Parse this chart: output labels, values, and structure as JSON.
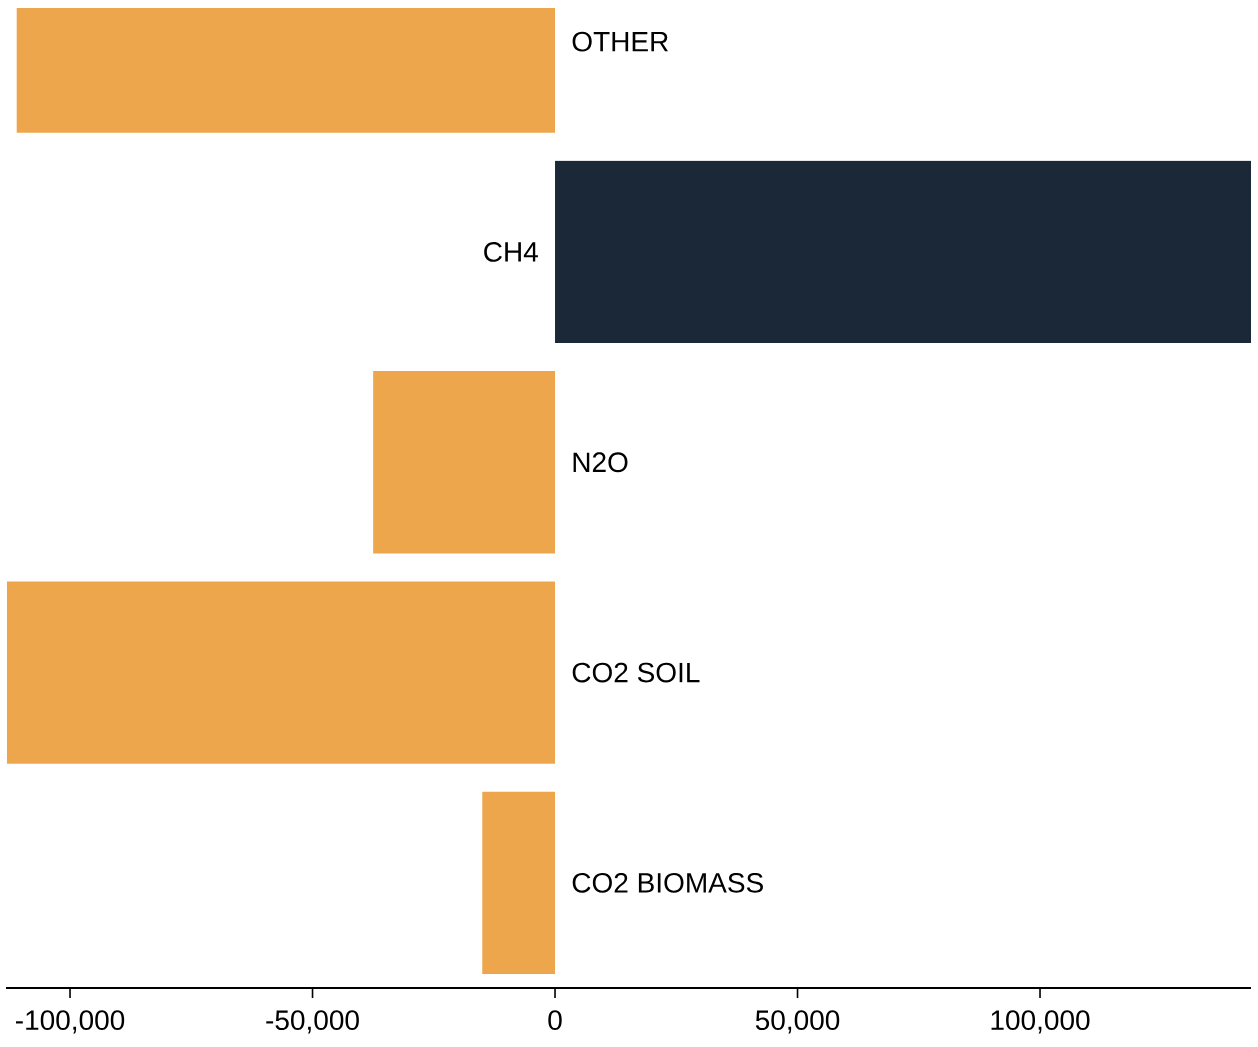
{
  "chart_data": {
    "type": "bar",
    "orientation": "horizontal",
    "categories": [
      "OTHER",
      "CH4",
      "N2O",
      "CO2 SOIL",
      "CO2 BIOMASS"
    ],
    "values": [
      -111000,
      143500,
      -37500,
      -113000,
      -15000
    ],
    "colors": [
      "#eea64c",
      "#1b2838",
      "#eea64c",
      "#eea64c",
      "#eea64c"
    ],
    "xlim": [
      -113200,
      143500
    ],
    "xticks": [
      {
        "value": -100000,
        "label": "-100,000"
      },
      {
        "value": -50000,
        "label": "-50,000"
      },
      0,
      {
        "value": 50000,
        "label": "50,000"
      },
      {
        "value": 100000,
        "label": "100,000"
      }
    ]
  }
}
